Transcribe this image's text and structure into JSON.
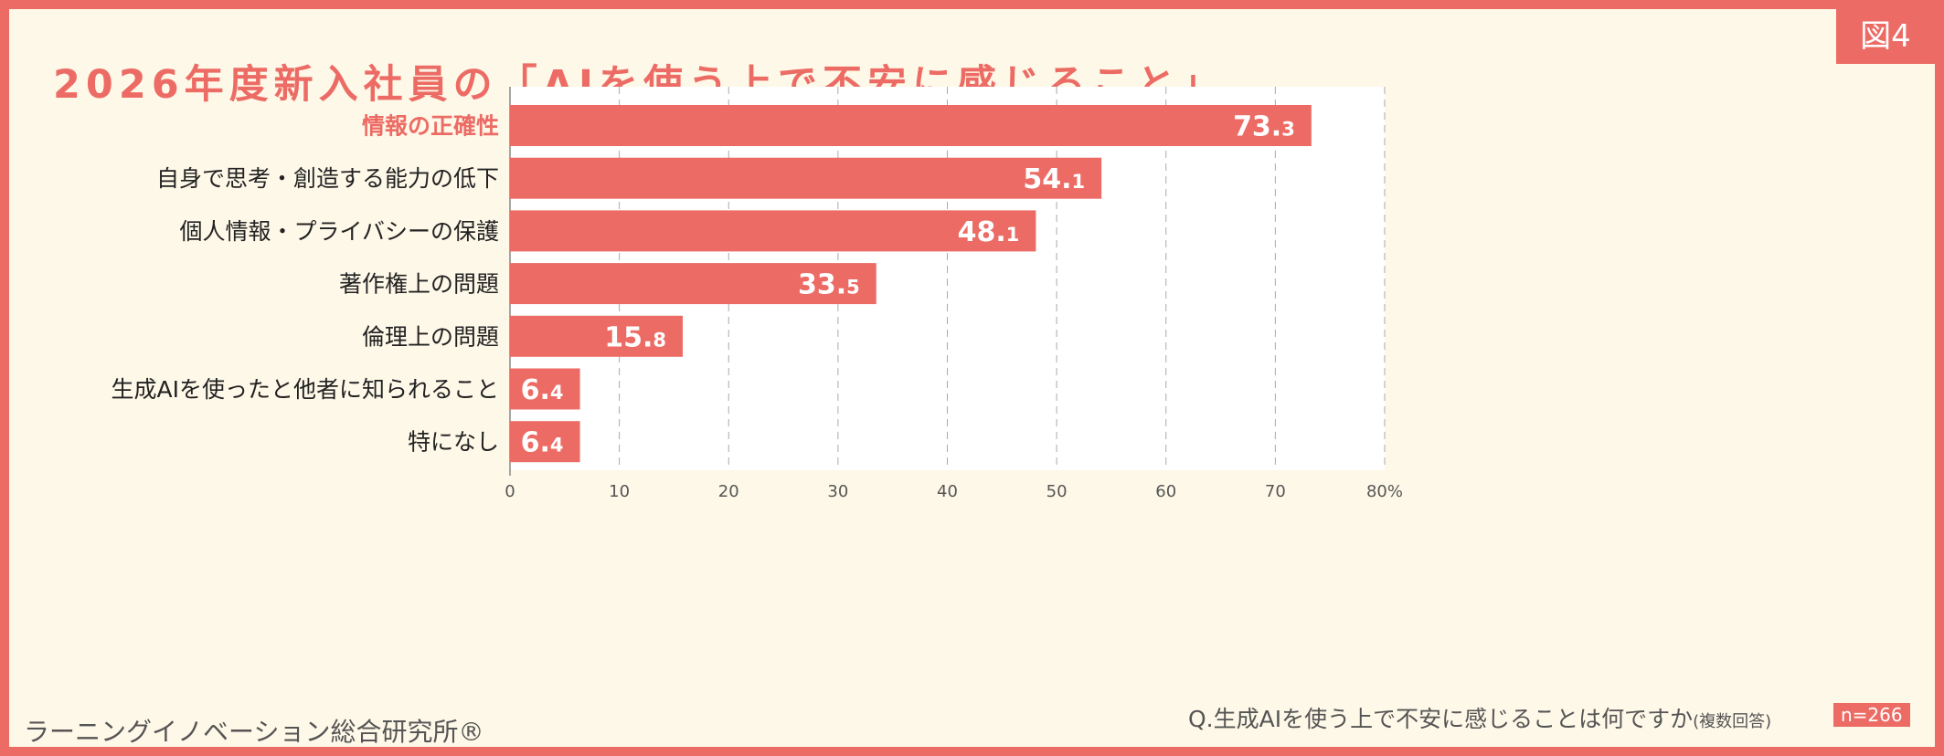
{
  "header": {
    "title": "2026年度新入社員の「AIを使う上で不安に感じること」",
    "figure_label": "図4"
  },
  "footer": {
    "source": "ラーニングイノベーション総合研究所®",
    "question": "Q.生成AIを使う上で不安に感じることは何ですか",
    "question_note": "(複数回答)",
    "n": "n=266"
  },
  "chart_data": {
    "type": "bar",
    "orientation": "horizontal",
    "categories": [
      "情報の正確性",
      "自身で思考・創造する能力の低下",
      "個人情報・プライバシーの保護",
      "著作権上の問題",
      "倫理上の問題",
      "生成AIを使ったと他者に知られること",
      "特になし"
    ],
    "values": [
      73.3,
      54.1,
      48.1,
      33.5,
      15.8,
      6.4,
      6.4
    ],
    "xlim": [
      0,
      80
    ],
    "xticks": [
      0,
      10,
      20,
      30,
      40,
      50,
      60,
      70,
      80
    ],
    "xunit": "%",
    "grid": "vertical-dashed",
    "colors": {
      "bar": "#ec6c65",
      "highlight_label": "#ec6c65",
      "label": "#222222"
    }
  }
}
